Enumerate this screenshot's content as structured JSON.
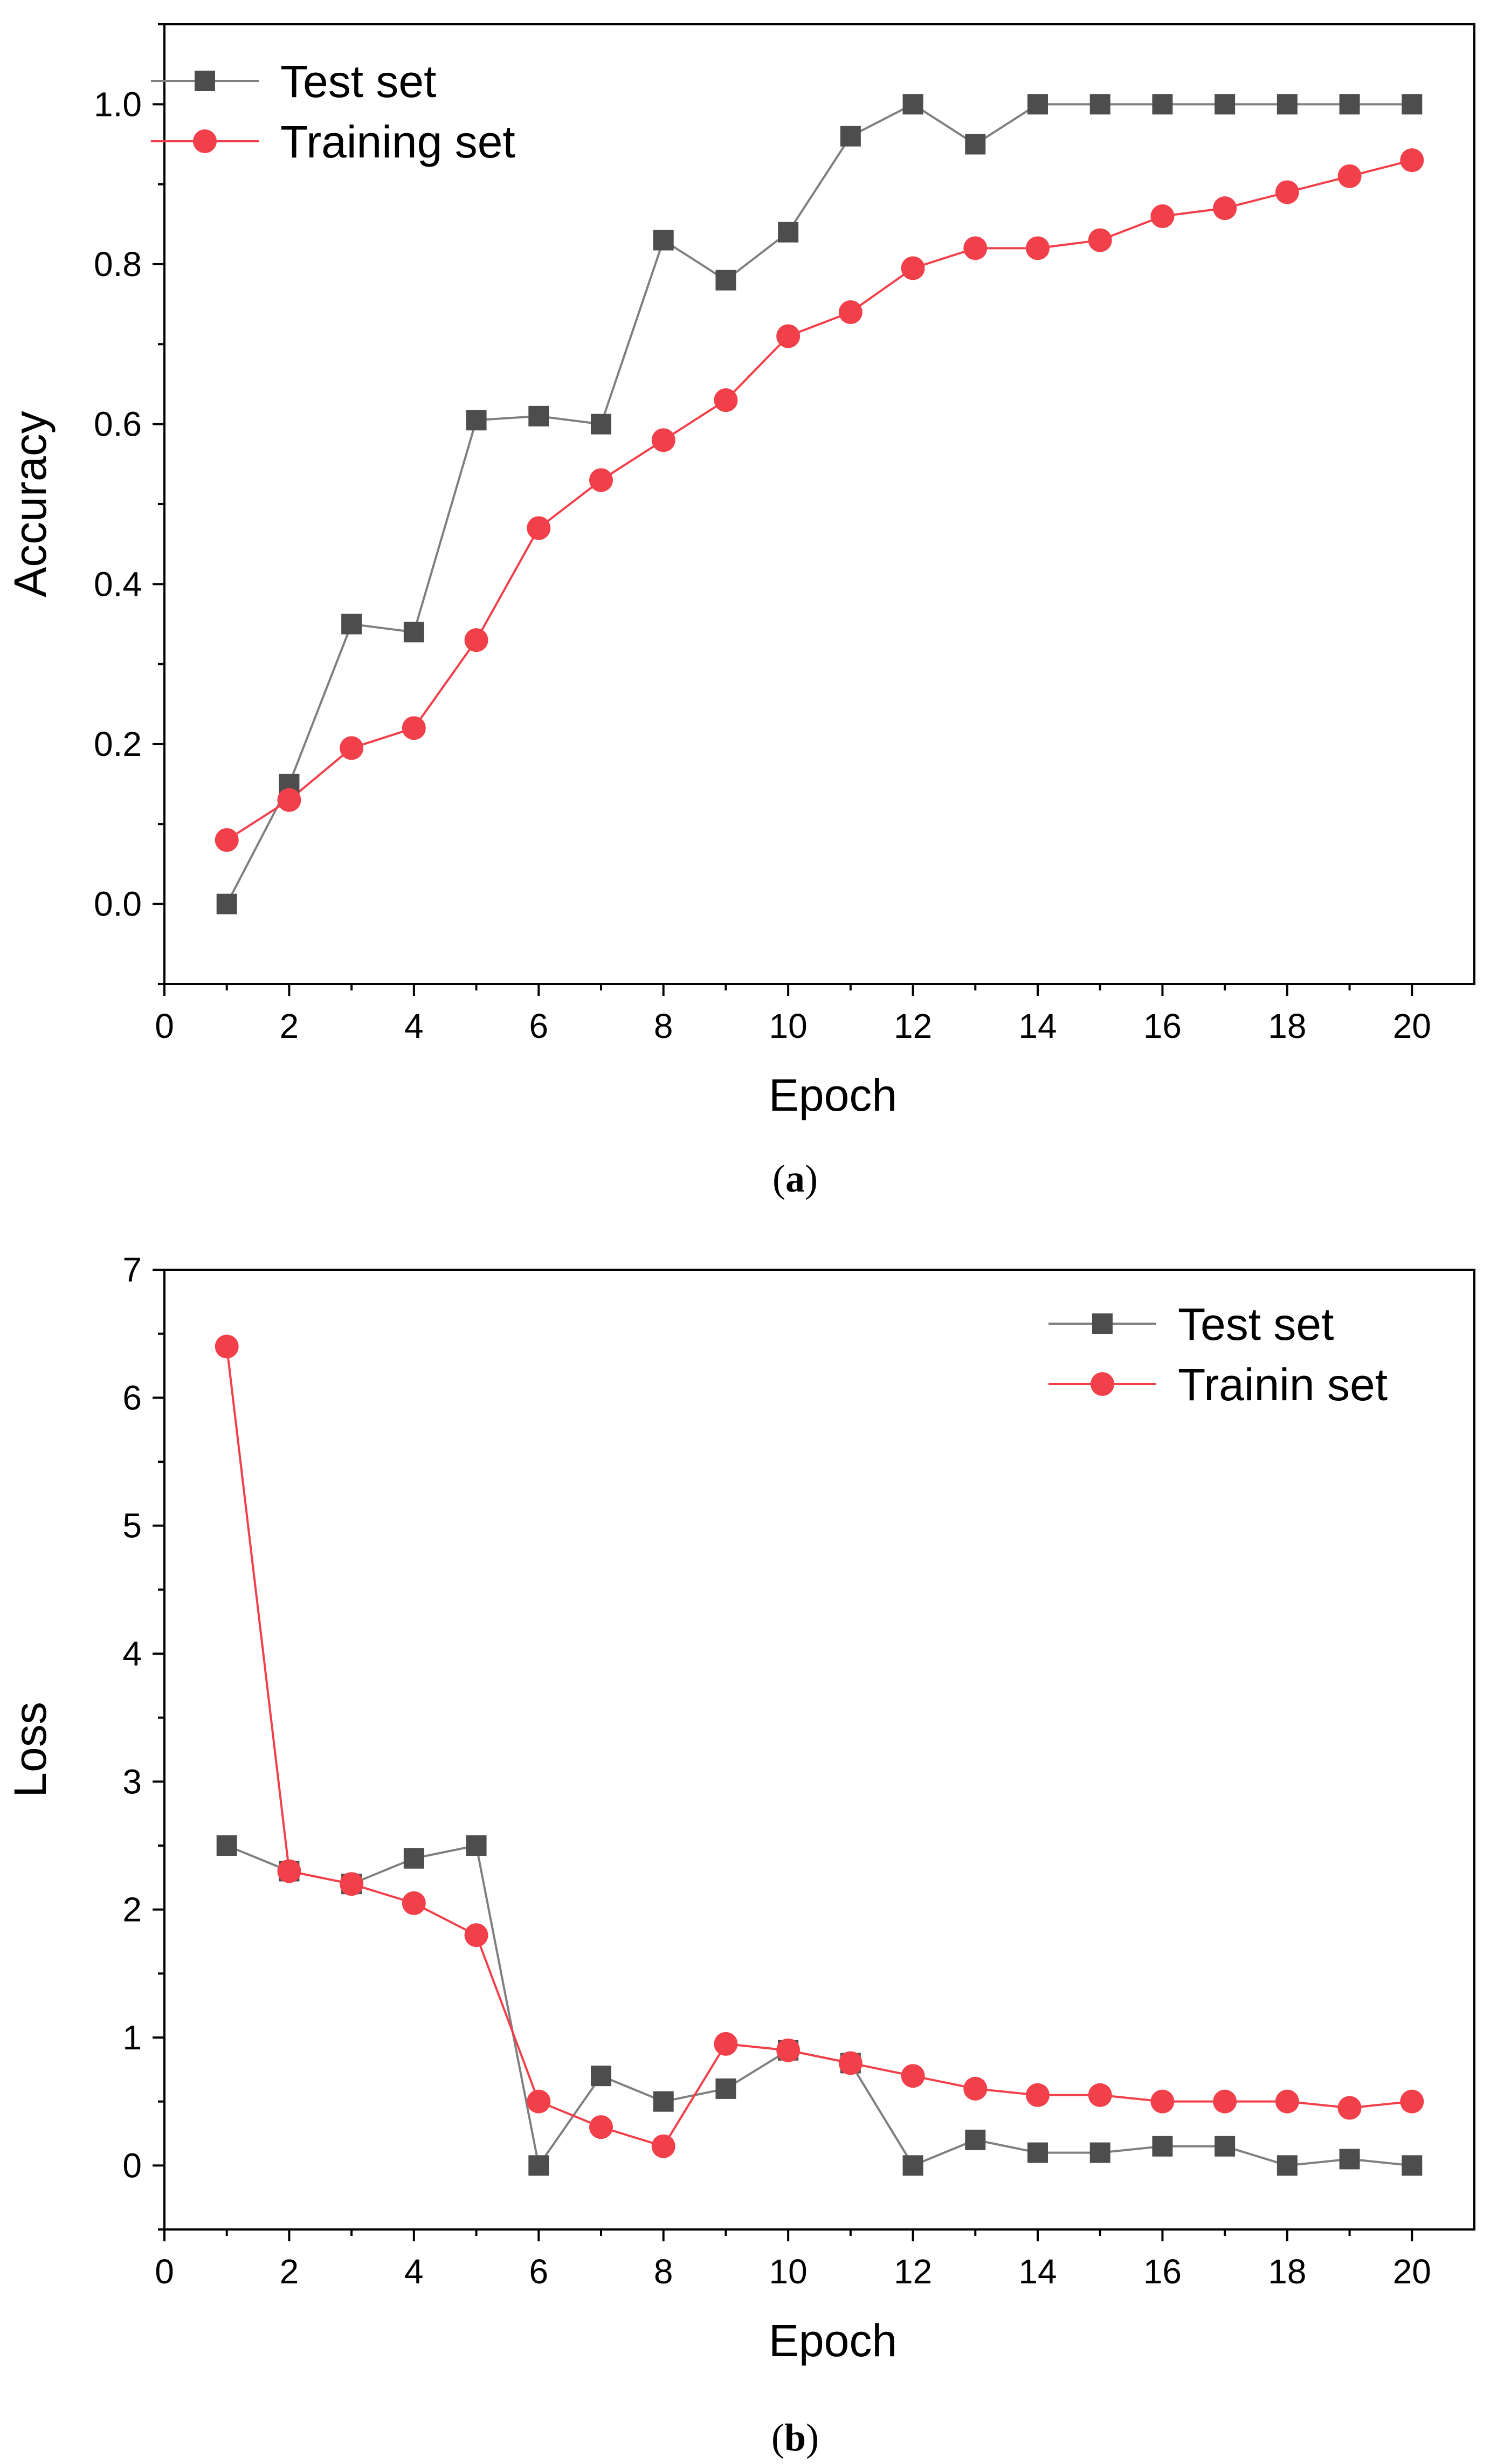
{
  "chart_data": [
    {
      "type": "line",
      "caption_letter": "a",
      "caption_open": "(",
      "caption_close": ")",
      "title": "",
      "xlabel": "Epoch",
      "ylabel": "Accuracy",
      "xlim": [
        0,
        21
      ],
      "ylim": [
        -0.1,
        1.1
      ],
      "xticks": [
        0,
        2,
        4,
        6,
        8,
        10,
        12,
        14,
        16,
        18,
        20
      ],
      "yticks": [
        0.0,
        0.2,
        0.4,
        0.6,
        0.8,
        1.0
      ],
      "ytick_decimals": 1,
      "grid": false,
      "legend_position": "top-left",
      "x": [
        1,
        2,
        3,
        4,
        5,
        6,
        7,
        8,
        9,
        10,
        11,
        12,
        13,
        14,
        15,
        16,
        17,
        18,
        19,
        20
      ],
      "series": [
        {
          "name": "Test set",
          "marker": "square",
          "color": "#4d4d4d",
          "line_color": "#7f7f7f",
          "values": [
            0.0,
            0.15,
            0.35,
            0.34,
            0.605,
            0.61,
            0.6,
            0.83,
            0.78,
            0.84,
            0.96,
            1.0,
            0.95,
            1.0,
            1.0,
            1.0,
            1.0,
            1.0,
            1.0,
            1.0
          ]
        },
        {
          "name": "Training set",
          "marker": "circle",
          "color": "#f2404b",
          "line_color": "#f2404b",
          "values": [
            0.08,
            0.13,
            0.195,
            0.22,
            0.33,
            0.47,
            0.53,
            0.58,
            0.63,
            0.71,
            0.74,
            0.795,
            0.82,
            0.82,
            0.83,
            0.86,
            0.87,
            0.89,
            0.91,
            0.93
          ]
        }
      ]
    },
    {
      "type": "line",
      "caption_letter": "b",
      "caption_open": "(",
      "caption_close": ")",
      "title": "",
      "xlabel": "Epoch",
      "ylabel": "Loss",
      "xlim": [
        0,
        21
      ],
      "ylim": [
        -0.5,
        7
      ],
      "xticks": [
        0,
        2,
        4,
        6,
        8,
        10,
        12,
        14,
        16,
        18,
        20
      ],
      "yticks": [
        0,
        1,
        2,
        3,
        4,
        5,
        6,
        7
      ],
      "ytick_decimals": 0,
      "grid": false,
      "legend_position": "top-right",
      "x": [
        1,
        2,
        3,
        4,
        5,
        6,
        7,
        8,
        9,
        10,
        11,
        12,
        13,
        14,
        15,
        16,
        17,
        18,
        19,
        20
      ],
      "series": [
        {
          "name": "Test set",
          "marker": "square",
          "color": "#4d4d4d",
          "line_color": "#7f7f7f",
          "values": [
            2.5,
            2.3,
            2.2,
            2.4,
            2.5,
            0.0,
            0.7,
            0.5,
            0.6,
            0.9,
            0.8,
            0.0,
            0.2,
            0.1,
            0.1,
            0.15,
            0.15,
            0.0,
            0.05,
            0.0
          ]
        },
        {
          "name": "Trainin set",
          "marker": "circle",
          "color": "#f2404b",
          "line_color": "#f2404b",
          "values": [
            6.4,
            2.3,
            2.2,
            2.05,
            1.8,
            0.5,
            0.3,
            0.15,
            0.95,
            0.9,
            0.8,
            0.7,
            0.6,
            0.55,
            0.55,
            0.5,
            0.5,
            0.5,
            0.45,
            0.5
          ]
        }
      ]
    }
  ]
}
